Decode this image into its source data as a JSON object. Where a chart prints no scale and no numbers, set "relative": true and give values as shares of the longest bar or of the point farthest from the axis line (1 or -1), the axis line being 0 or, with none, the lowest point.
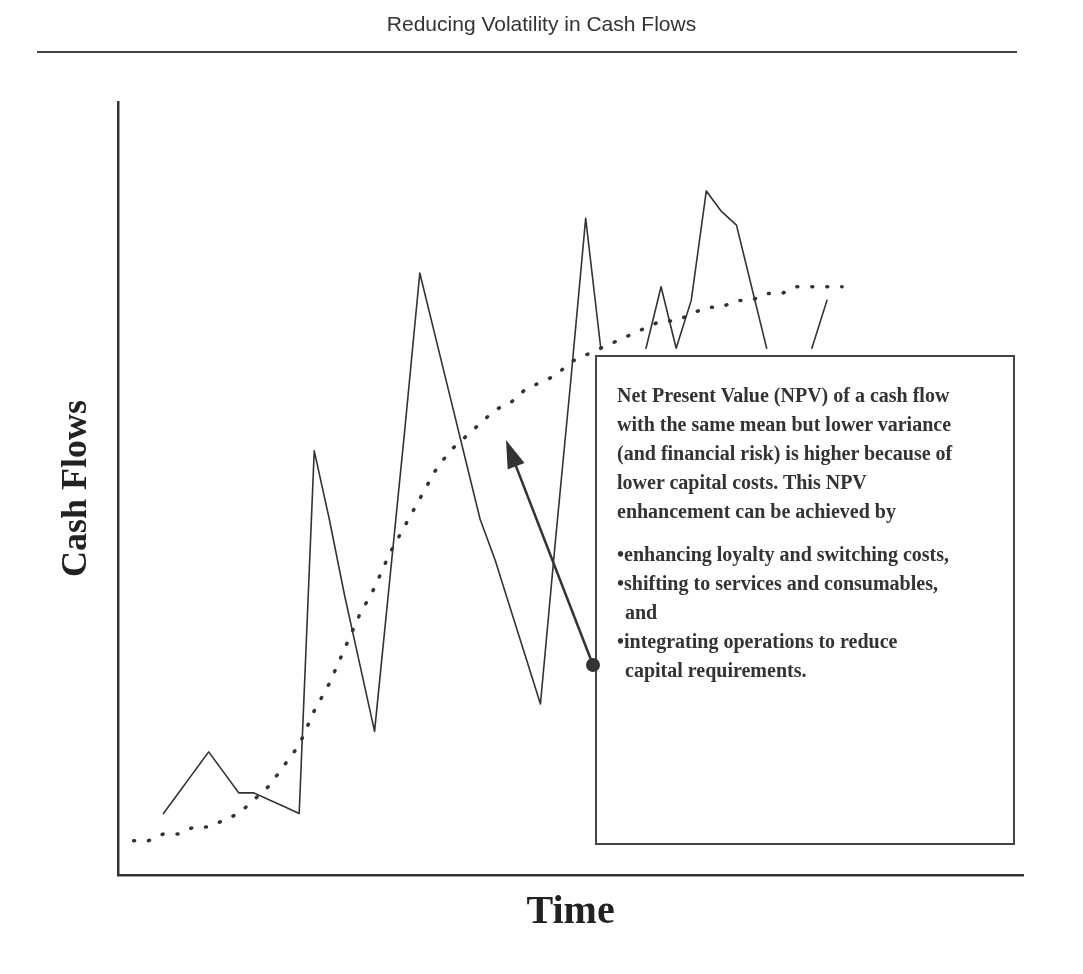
{
  "chart_data": {
    "type": "line",
    "title": "Reducing Volatility in Cash Flows",
    "xlabel": "Time",
    "ylabel": "Cash Flows",
    "relative": true,
    "legend": false,
    "grid": false,
    "marker": "none",
    "categories": [
      null,
      null,
      null,
      null,
      null,
      null,
      null,
      null,
      null,
      null,
      null,
      null,
      null,
      null,
      null,
      null,
      null,
      null,
      null,
      null,
      null,
      null,
      null,
      null,
      null,
      null,
      null,
      null,
      null,
      null,
      null,
      null,
      null,
      null,
      null,
      null,
      null,
      null,
      null,
      null,
      null,
      null,
      null,
      null,
      null,
      null,
      null,
      null,
      null,
      null,
      null,
      null,
      null,
      null,
      null,
      null,
      null,
      null,
      null,
      null,
      null
    ],
    "series": [
      {
        "color": "#333333",
        "line_style": "solid",
        "values": [
          null,
          null,
          null,
          0.09,
          0.12,
          0.15,
          0.18,
          0.15,
          0.12,
          0.12,
          0.11,
          0.1,
          0.09,
          0.62,
          0.52,
          0.41,
          0.31,
          0.21,
          0.43,
          0.65,
          0.88,
          0.79,
          0.7,
          0.61,
          0.52,
          0.46,
          0.39,
          0.32,
          0.25,
          0.49,
          0.72,
          0.96,
          0.77,
          null,
          null,
          0.77,
          0.86,
          0.77,
          0.84,
          1.0,
          0.97,
          0.95,
          0.86,
          0.77,
          null,
          null,
          0.77,
          0.84,
          null,
          null,
          null,
          null,
          null,
          null,
          null,
          null,
          null,
          null,
          null,
          null,
          null
        ]
      },
      {
        "color": "#333333",
        "line_style": "dotted",
        "values": [
          null,
          0.05,
          0.05,
          0.06,
          0.06,
          0.07,
          0.07,
          0.08,
          0.09,
          0.11,
          0.13,
          0.16,
          0.19,
          0.24,
          0.28,
          0.33,
          0.38,
          0.42,
          0.47,
          0.51,
          0.55,
          0.59,
          0.62,
          0.64,
          0.66,
          0.68,
          0.69,
          0.71,
          0.72,
          0.73,
          0.75,
          0.76,
          0.77,
          0.78,
          0.79,
          0.8,
          0.81,
          0.81,
          0.82,
          0.83,
          0.83,
          0.84,
          0.84,
          0.85,
          0.85,
          0.86,
          0.86,
          0.86,
          0.86,
          null,
          null,
          null,
          null,
          null,
          null,
          null,
          null,
          null,
          null,
          null,
          null
        ]
      }
    ],
    "annotations": [
      "Net Present Value (NPV) of a cash flow with the same mean but lower variance (and financial risk) is higher because of lower capital costs. This NPV enhancement can be achieved by\n•enhancing loyalty and switching costs,\n•shifting to services and consumables, and\n•integrating operations to reduce capital requirements."
    ]
  }
}
